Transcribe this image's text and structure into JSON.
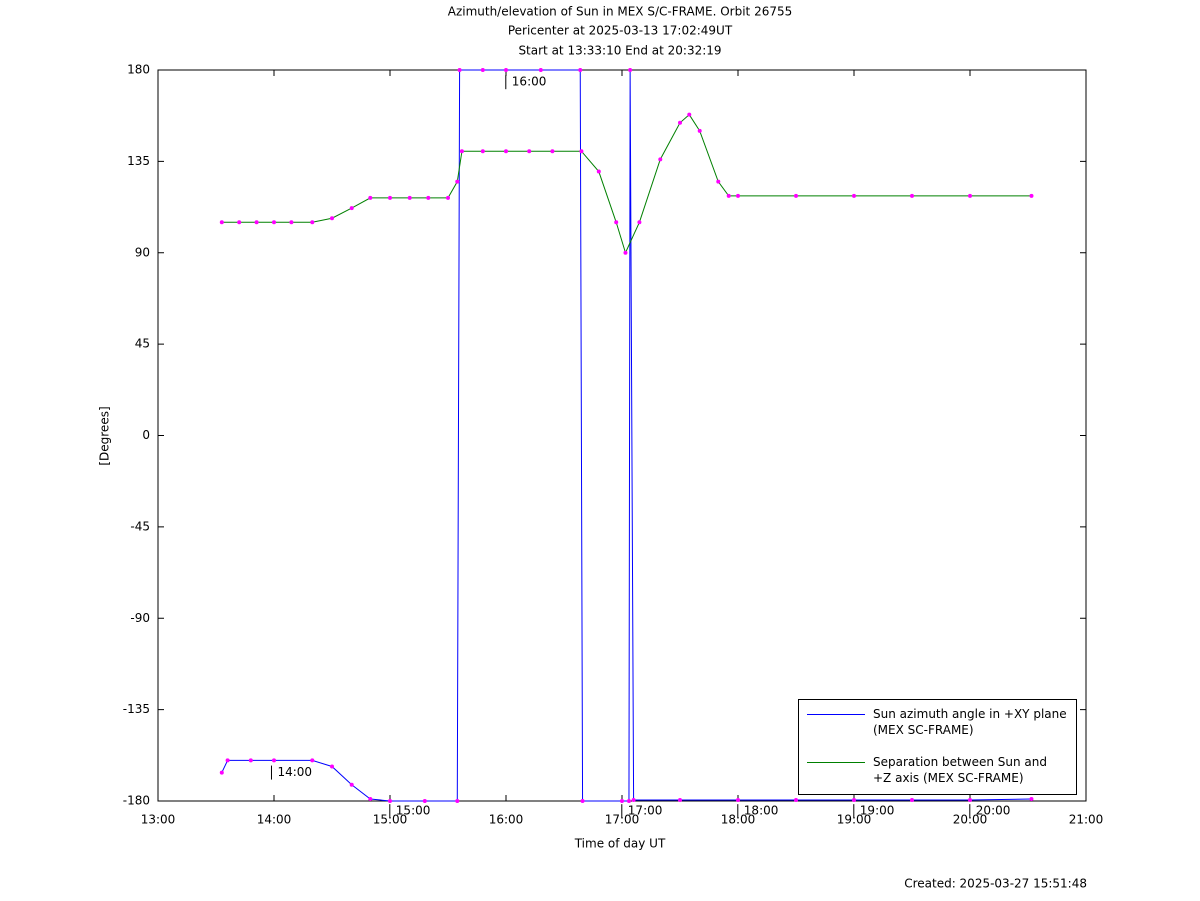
{
  "chart_data": {
    "type": "line",
    "title": "Azimuth/elevation of Sun in MEX S/C-FRAME.  Orbit 26755",
    "subtitle": "Pericenter at 2025-03-13 17:02:49UT",
    "subtitle2": "Start at 13:33:10 End at 20:32:19",
    "x_label": "Time of day UT",
    "y_label": "[Degrees]",
    "footer": "Created: 2025-03-27 15:51:48",
    "xlim": [
      13,
      21
    ],
    "xticks": [
      {
        "value": 13,
        "label": "13:00"
      },
      {
        "value": 14,
        "label": "14:00"
      },
      {
        "value": 15,
        "label": "15:00"
      },
      {
        "value": 16,
        "label": "16:00"
      },
      {
        "value": 17,
        "label": "17:00"
      },
      {
        "value": 18,
        "label": "18:00"
      },
      {
        "value": 19,
        "label": "19:00"
      },
      {
        "value": 20,
        "label": "20:00"
      },
      {
        "value": 21,
        "label": "21:00"
      }
    ],
    "ylim": [
      -180,
      180
    ],
    "yticks": [
      180,
      135,
      90,
      45,
      0,
      -45,
      -90,
      -135,
      -180
    ],
    "grid": false,
    "legend": "lower right",
    "marker_color": "#ff00ff",
    "series": [
      {
        "name": "Sun azimuth angle in +XY plane (MEX SC-FRAME)",
        "color": "#0000ff",
        "x": [
          13.55,
          13.6,
          13.8,
          14.0,
          14.33,
          14.5,
          14.67,
          14.83,
          15.0,
          15.3,
          15.58,
          15.6,
          15.8,
          16.0,
          16.3,
          16.64,
          16.66,
          17.0,
          17.06,
          17.07,
          17.1,
          17.5,
          18.0,
          18.5,
          19.0,
          19.5,
          20.0,
          20.53
        ],
        "values": [
          -166,
          -160,
          -160,
          -160,
          -160,
          -163,
          -172,
          -179,
          -180,
          -180,
          -180,
          180,
          180,
          180,
          180,
          180,
          -180,
          -180,
          -180,
          180,
          -179.5,
          -179.5,
          -179.5,
          -179.5,
          -179.5,
          -179.5,
          -179.5,
          -179
        ]
      },
      {
        "name": "Separation between Sun and +Z axis (MEX SC-FRAME)",
        "color": "#008000",
        "x": [
          13.55,
          13.7,
          13.85,
          14.0,
          14.15,
          14.33,
          14.5,
          14.67,
          14.83,
          15.0,
          15.17,
          15.33,
          15.5,
          15.58,
          15.62,
          15.8,
          16.0,
          16.2,
          16.4,
          16.65,
          16.8,
          16.95,
          17.03,
          17.15,
          17.33,
          17.5,
          17.58,
          17.67,
          17.83,
          17.92,
          18.0,
          18.5,
          19.0,
          19.5,
          20.0,
          20.53
        ],
        "values": [
          105,
          105,
          105,
          105,
          105,
          105,
          107,
          112,
          117,
          117,
          117,
          117,
          117,
          125,
          140,
          140,
          140,
          140,
          140,
          140,
          130,
          105,
          90,
          105,
          136,
          154,
          158,
          150,
          125,
          118,
          118,
          118,
          118,
          118,
          118,
          118
        ]
      }
    ],
    "annotations": [
      {
        "text": "14:00",
        "x": 14.03,
        "y": -166
      },
      {
        "text": "15:00",
        "x": 15.05,
        "y": -185
      },
      {
        "text": "16:00",
        "x": 16.05,
        "y": 174
      },
      {
        "text": "17:00",
        "x": 17.05,
        "y": -185
      },
      {
        "text": "18:00",
        "x": 18.05,
        "y": -185
      },
      {
        "text": "19:00",
        "x": 19.05,
        "y": -185
      },
      {
        "text": "20:00",
        "x": 20.05,
        "y": -185
      }
    ]
  }
}
